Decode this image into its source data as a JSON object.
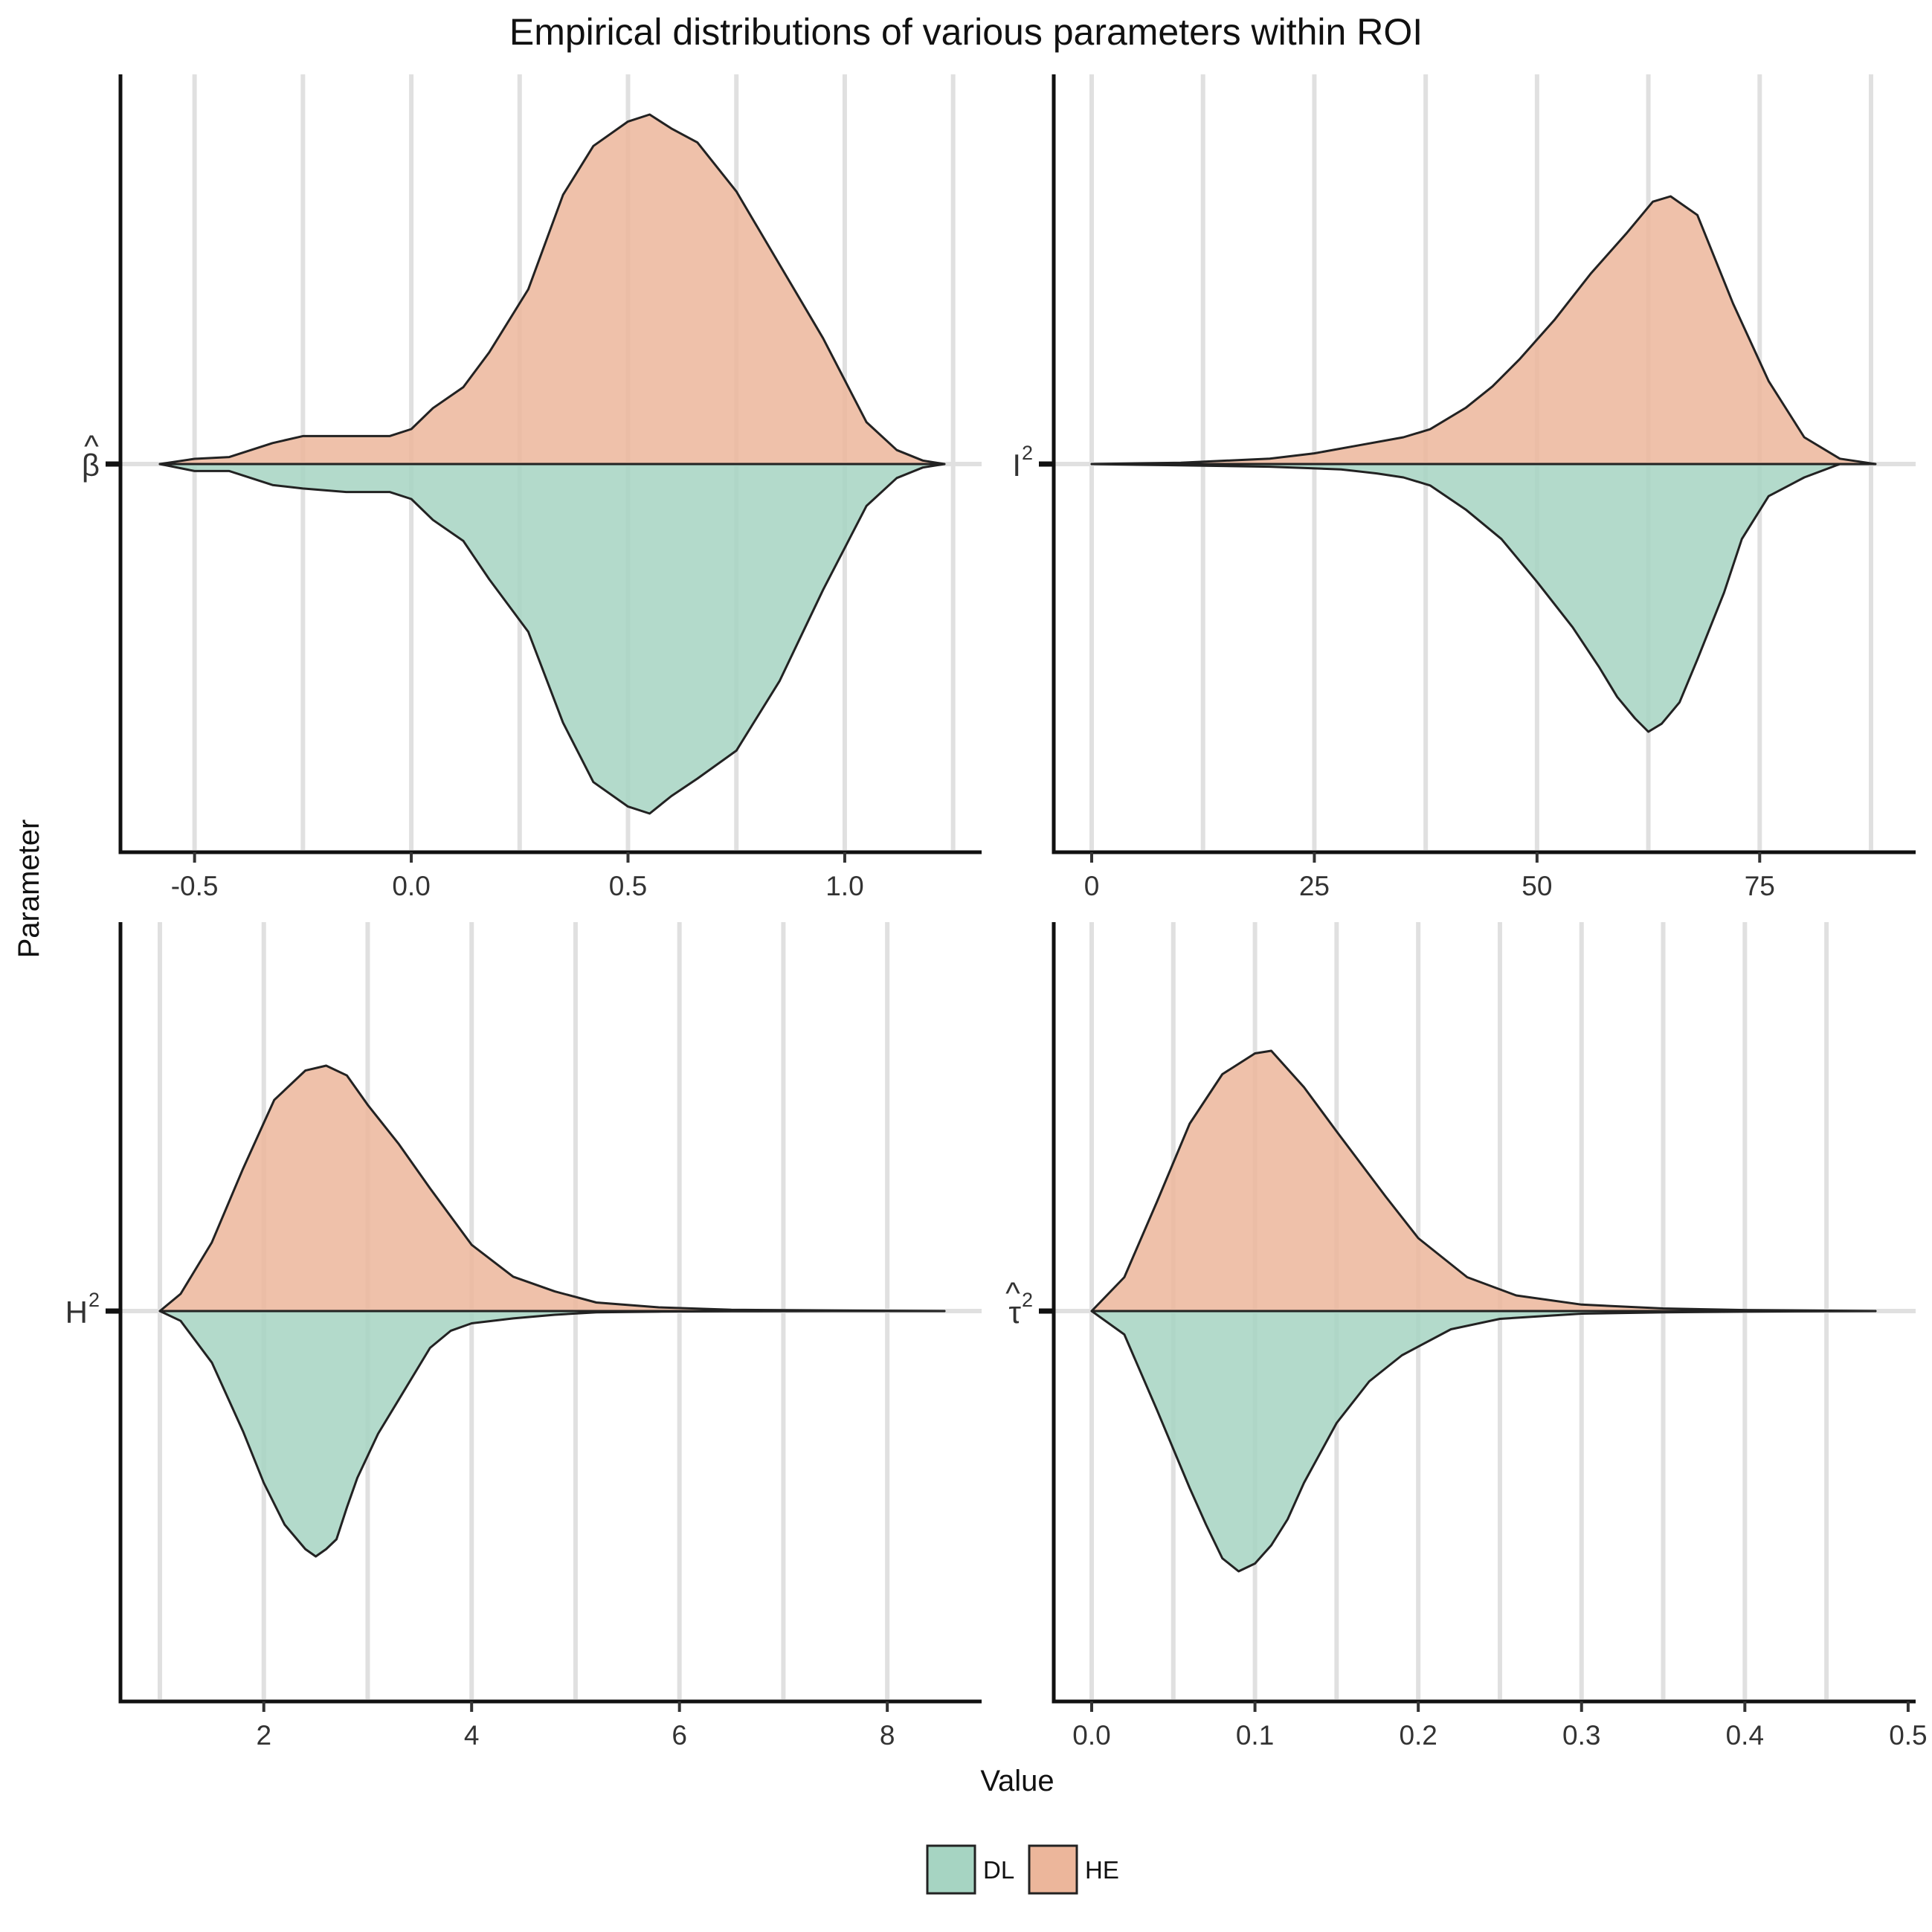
{
  "title": "Empirical distributions of various parameters within ROI",
  "xlabel": "Value",
  "ylabel": "Parameter",
  "legend": {
    "items": [
      {
        "label": "DL",
        "color": "#a6d4c2"
      },
      {
        "label": "HE",
        "color": "#ecb69b"
      }
    ]
  },
  "chart_data": [
    {
      "type": "area",
      "panel": "top-left",
      "y_label": {
        "base": "β",
        "mark": "^",
        "sup": ""
      },
      "xlim": [
        -0.58,
        1.23
      ],
      "xticks": [
        -0.5,
        0.0,
        0.5,
        1.0
      ],
      "xtick_labels": [
        "-0.5",
        "0.0",
        "0.5",
        "1.0"
      ],
      "vgrid": [
        -0.5,
        -0.25,
        0.0,
        0.25,
        0.5,
        0.75,
        1.0,
        1.25
      ],
      "series": [
        {
          "name": "HE",
          "side": "up",
          "x": [
            -0.58,
            -0.5,
            -0.42,
            -0.32,
            -0.25,
            -0.15,
            -0.05,
            0.0,
            0.05,
            0.12,
            0.18,
            0.27,
            0.35,
            0.42,
            0.5,
            0.55,
            0.6,
            0.66,
            0.75,
            0.85,
            0.95,
            1.05,
            1.12,
            1.18,
            1.23
          ],
          "y": [
            0.0,
            0.015,
            0.02,
            0.06,
            0.08,
            0.08,
            0.08,
            0.1,
            0.16,
            0.22,
            0.32,
            0.5,
            0.77,
            0.91,
            0.98,
            1.0,
            0.96,
            0.92,
            0.78,
            0.57,
            0.36,
            0.12,
            0.04,
            0.01,
            0.0
          ]
        },
        {
          "name": "DL",
          "side": "down",
          "x": [
            -0.58,
            -0.5,
            -0.42,
            -0.32,
            -0.25,
            -0.15,
            -0.05,
            0.0,
            0.05,
            0.12,
            0.18,
            0.27,
            0.35,
            0.42,
            0.5,
            0.55,
            0.6,
            0.66,
            0.75,
            0.85,
            0.95,
            1.05,
            1.12,
            1.18,
            1.23
          ],
          "y": [
            0.0,
            0.02,
            0.02,
            0.06,
            0.07,
            0.08,
            0.08,
            0.1,
            0.16,
            0.22,
            0.33,
            0.48,
            0.74,
            0.91,
            0.98,
            1.0,
            0.95,
            0.9,
            0.82,
            0.62,
            0.36,
            0.12,
            0.04,
            0.01,
            0.0
          ]
        }
      ]
    },
    {
      "type": "area",
      "panel": "top-right",
      "y_label": {
        "base": "I",
        "mark": "",
        "sup": "2"
      },
      "xlim": [
        0,
        88
      ],
      "xticks": [
        0,
        25,
        50,
        75
      ],
      "xtick_labels": [
        "0",
        "25",
        "50",
        "75"
      ],
      "vgrid": [
        0,
        12.5,
        25,
        37.5,
        50,
        62.5,
        75,
        87.5
      ],
      "series": [
        {
          "name": "HE",
          "side": "up",
          "x": [
            0,
            10,
            20,
            25,
            30,
            35,
            38,
            42,
            45,
            48,
            52,
            56,
            60,
            63,
            65,
            68,
            72,
            76,
            80,
            84,
            88
          ],
          "y": [
            0.0,
            0.005,
            0.02,
            0.04,
            0.07,
            0.1,
            0.13,
            0.21,
            0.29,
            0.39,
            0.54,
            0.71,
            0.86,
            0.98,
            1.0,
            0.93,
            0.6,
            0.31,
            0.1,
            0.02,
            0.0
          ]
        },
        {
          "name": "DL",
          "side": "down",
          "x": [
            0,
            10,
            20,
            28,
            32,
            35,
            38,
            42,
            46,
            50,
            54,
            57,
            59,
            61,
            62.5,
            64,
            66,
            68,
            71,
            73,
            76,
            80,
            84
          ],
          "y": [
            0.0,
            0.005,
            0.01,
            0.02,
            0.035,
            0.05,
            0.08,
            0.17,
            0.28,
            0.44,
            0.61,
            0.76,
            0.87,
            0.95,
            1.0,
            0.97,
            0.89,
            0.73,
            0.48,
            0.28,
            0.12,
            0.05,
            0.0
          ]
        }
      ]
    },
    {
      "type": "area",
      "panel": "bottom-left",
      "y_label": {
        "base": "H",
        "mark": "",
        "sup": "2"
      },
      "xlim": [
        1.0,
        8.55
      ],
      "xticks": [
        2,
        4,
        6,
        8
      ],
      "xtick_labels": [
        "2",
        "4",
        "6",
        "8"
      ],
      "vgrid": [
        1,
        2,
        3,
        4,
        5,
        6,
        7,
        8
      ],
      "series": [
        {
          "name": "HE",
          "side": "up",
          "x": [
            1.0,
            1.2,
            1.5,
            1.8,
            2.1,
            2.4,
            2.6,
            2.8,
            3.0,
            3.3,
            3.6,
            4.0,
            4.4,
            4.8,
            5.2,
            5.8,
            6.5,
            7.5,
            8.55
          ],
          "y": [
            0.0,
            0.07,
            0.28,
            0.58,
            0.86,
            0.98,
            1.0,
            0.96,
            0.84,
            0.68,
            0.5,
            0.27,
            0.14,
            0.08,
            0.035,
            0.015,
            0.005,
            0.002,
            0.0
          ]
        },
        {
          "name": "DL",
          "side": "down",
          "x": [
            1.0,
            1.2,
            1.5,
            1.8,
            2.0,
            2.2,
            2.4,
            2.5,
            2.6,
            2.7,
            2.8,
            2.9,
            3.1,
            3.3,
            3.6,
            3.8,
            4.0,
            4.4,
            4.8,
            5.2,
            5.8,
            6.5,
            7.5,
            8.55
          ],
          "y": [
            0.0,
            0.04,
            0.21,
            0.49,
            0.7,
            0.87,
            0.97,
            1.0,
            0.97,
            0.93,
            0.8,
            0.68,
            0.5,
            0.36,
            0.15,
            0.08,
            0.05,
            0.03,
            0.015,
            0.005,
            0.002,
            0.001,
            0.0,
            0.0
          ]
        }
      ]
    },
    {
      "type": "area",
      "panel": "bottom-right",
      "y_label": {
        "base": "τ",
        "mark": "^",
        "sup": "2"
      },
      "xlim": [
        0.0,
        0.48
      ],
      "xticks": [
        0.0,
        0.1,
        0.2,
        0.3,
        0.4,
        0.5
      ],
      "xtick_labels": [
        "0.0",
        "0.1",
        "0.2",
        "0.3",
        "0.4",
        "0.5"
      ],
      "vgrid": [
        0.0,
        0.05,
        0.1,
        0.15,
        0.2,
        0.25,
        0.3,
        0.35,
        0.4,
        0.45
      ],
      "series": [
        {
          "name": "HE",
          "side": "up",
          "x": [
            0.0,
            0.02,
            0.04,
            0.06,
            0.08,
            0.1,
            0.11,
            0.13,
            0.15,
            0.18,
            0.2,
            0.23,
            0.26,
            0.3,
            0.35,
            0.4,
            0.48
          ],
          "y": [
            0.0,
            0.13,
            0.42,
            0.72,
            0.91,
            0.99,
            1.0,
            0.86,
            0.69,
            0.44,
            0.28,
            0.13,
            0.06,
            0.025,
            0.01,
            0.004,
            0.0
          ]
        },
        {
          "name": "DL",
          "side": "down",
          "x": [
            0.0,
            0.02,
            0.04,
            0.06,
            0.07,
            0.08,
            0.09,
            0.1,
            0.11,
            0.12,
            0.13,
            0.15,
            0.17,
            0.19,
            0.22,
            0.25,
            0.3,
            0.35,
            0.4,
            0.48
          ],
          "y": [
            0.0,
            0.09,
            0.38,
            0.68,
            0.82,
            0.95,
            1.0,
            0.97,
            0.9,
            0.8,
            0.66,
            0.43,
            0.27,
            0.17,
            0.07,
            0.03,
            0.01,
            0.005,
            0.002,
            0.0
          ]
        }
      ]
    }
  ]
}
